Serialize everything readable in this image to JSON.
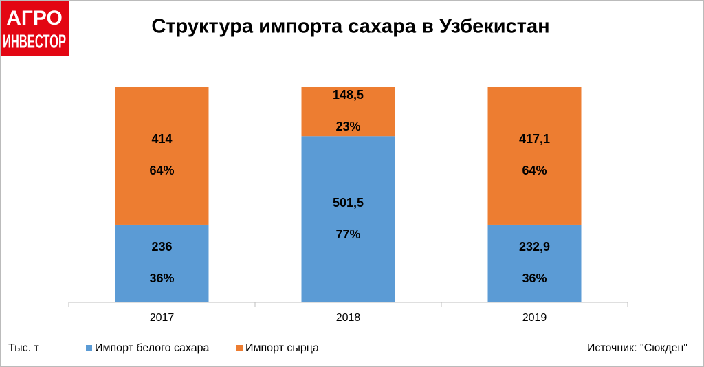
{
  "logo": {
    "line1": "АГРО",
    "line2": "ИНВЕСТОР"
  },
  "chart_data": {
    "type": "stacked_percent_bar",
    "title": "Структура импорта сахара в Узбекистан",
    "unit_label": "Тыс. т",
    "source": "Источник: \"Сюкден\"",
    "categories": [
      "2017",
      "2018",
      "2019"
    ],
    "ylim": [
      0,
      100
    ],
    "series": [
      {
        "name": "Импорт белого сахара",
        "color": "#5b9bd5",
        "values": [
          236,
          501.5,
          232.9
        ],
        "value_labels": [
          "236",
          "501,5",
          "232,9"
        ],
        "percents": [
          36,
          77,
          36
        ],
        "percent_labels": [
          "36%",
          "77%",
          "36%"
        ]
      },
      {
        "name": "Импорт сырца",
        "color": "#ed7d31",
        "values": [
          414,
          148.5,
          417.1
        ],
        "value_labels": [
          "414",
          "148,5",
          "417,1"
        ],
        "percents": [
          64,
          23,
          64
        ],
        "percent_labels": [
          "64%",
          "23%",
          "64%"
        ]
      }
    ]
  }
}
